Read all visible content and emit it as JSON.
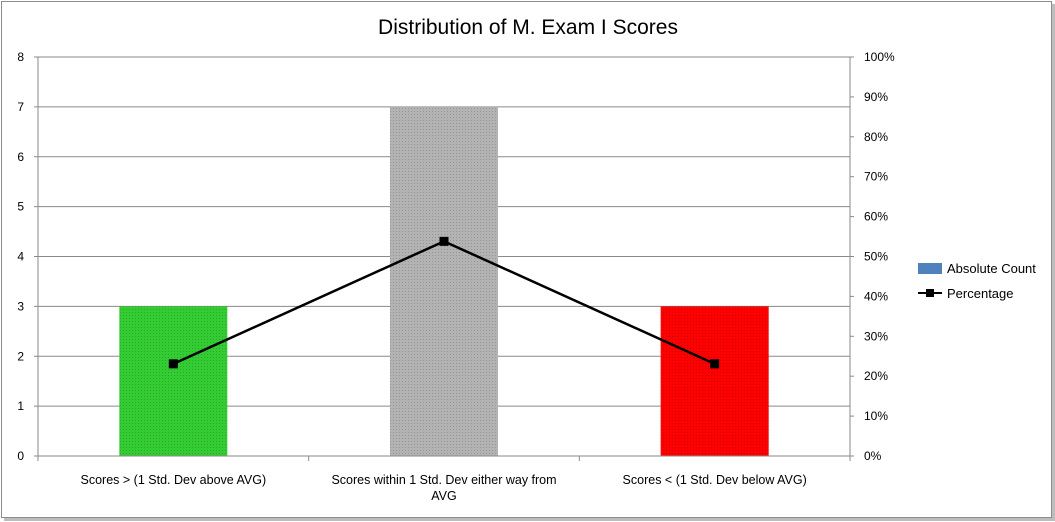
{
  "chart_data": {
    "type": "bar",
    "title": "Distribution of M. Exam I Scores",
    "categories": [
      [
        "Scores > (1 Std. Dev above AVG)"
      ],
      [
        "Scores within 1 Std. Dev either way from",
        "AVG"
      ],
      [
        "Scores < (1 Std. Dev below AVG)"
      ]
    ],
    "series": [
      {
        "name": "Absolute Count",
        "type": "bar",
        "axis": "left",
        "values": [
          3,
          7,
          3
        ],
        "colors": [
          "#33cc33",
          "#b3b3b3",
          "#ff0000"
        ]
      },
      {
        "name": "Percentage",
        "type": "line",
        "axis": "right",
        "values": [
          23.1,
          53.8,
          23.1
        ],
        "color": "#000000"
      }
    ],
    "ylim": [
      0,
      8
    ],
    "y_ticks": [
      "0",
      "1",
      "2",
      "3",
      "4",
      "5",
      "6",
      "7",
      "8"
    ],
    "y2lim": [
      0,
      100
    ],
    "y2_ticks": [
      "0%",
      "10%",
      "20%",
      "30%",
      "40%",
      "50%",
      "60%",
      "70%",
      "80%",
      "90%",
      "100%"
    ],
    "grid": true,
    "legend_position": "right",
    "legend_icon_color": "#4f81bd"
  }
}
